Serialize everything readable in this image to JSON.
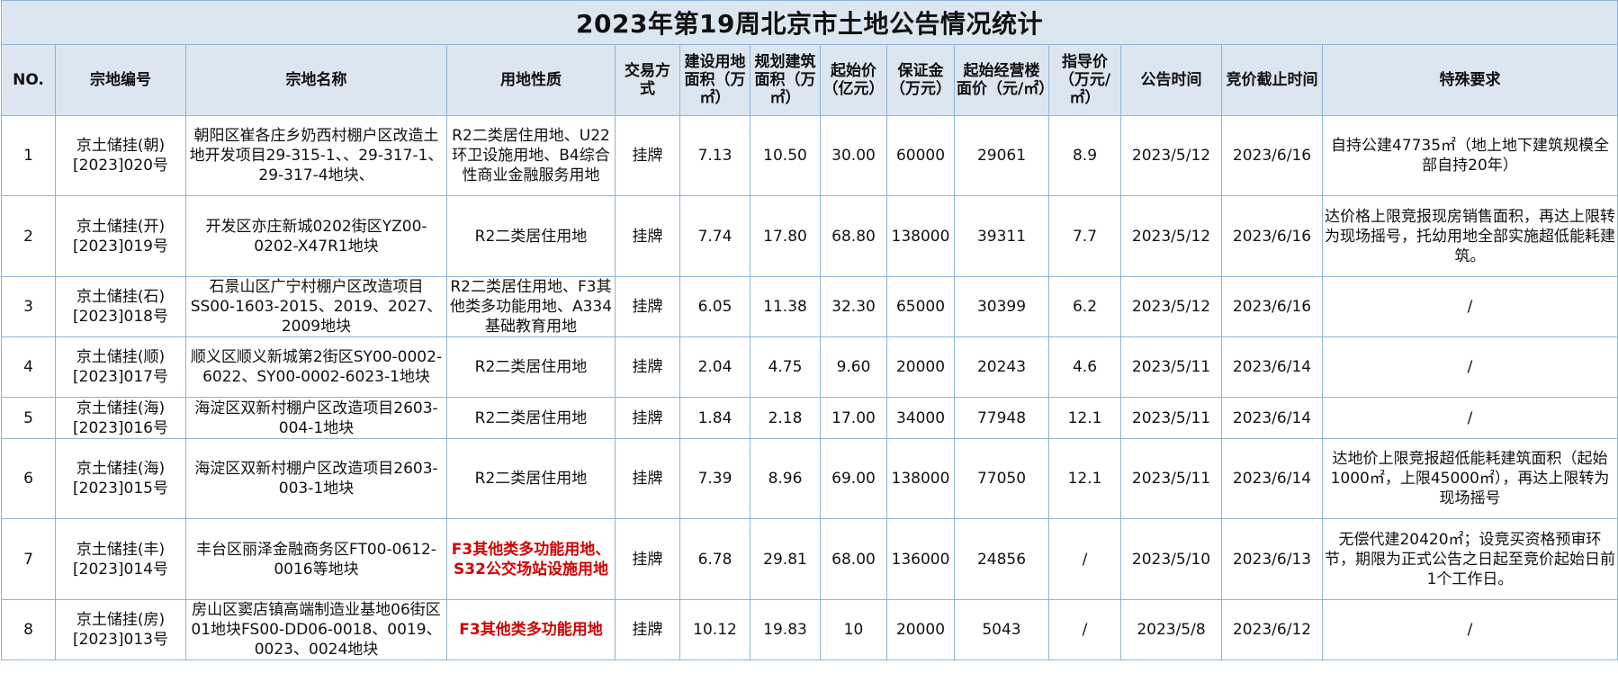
{
  "title": "2023年第19周北京市土地公告情况统计",
  "headers": {
    "no": "NO.",
    "code": "宗地编号",
    "name": "宗地名称",
    "use": "用地性质",
    "method": "交易方式",
    "land_area": "建设用地面积（万㎡）",
    "build_area": "规划建筑面积（万㎡）",
    "start_price": "起始价（亿元）",
    "deposit": "保证金（万元）",
    "floor_price": "起始经营楼面价（元/㎡）",
    "guide_price": "指导价（万元/㎡）",
    "announce": "公告时间",
    "deadline": "竞价截止时间",
    "special": "特殊要求"
  },
  "rows": [
    {
      "no": "1",
      "code": "京土储挂(朝)[2023]020号",
      "name": "朝阳区崔各庄乡奶西村棚户区改造土地开发项目29-315-1、、29-317-1、29-317-4地块、",
      "use": "R2二类居住用地、U22环卫设施用地、B4综合性商业金融服务用地",
      "method": "挂牌",
      "land_area": "7.13",
      "build_area": "10.50",
      "start_price": "30.00",
      "deposit": "60000",
      "floor_price": "29061",
      "guide_price": "8.9",
      "announce": "2023/5/12",
      "deadline": "2023/6/16",
      "special": "自持公建47735㎡（地上地下建筑规模全部自持20年）"
    },
    {
      "no": "2",
      "code": "京土储挂(开)[2023]019号",
      "name": "开发区亦庄新城0202街区YZ00-0202-X47R1地块",
      "use": "R2二类居住用地",
      "method": "挂牌",
      "land_area": "7.74",
      "build_area": "17.80",
      "start_price": "68.80",
      "deposit": "138000",
      "floor_price": "39311",
      "guide_price": "7.7",
      "announce": "2023/5/12",
      "deadline": "2023/6/16",
      "special": "达价格上限竞报现房销售面积，再达上限转为现场摇号，托幼用地全部实施超低能耗建筑。"
    },
    {
      "no": "3",
      "code": "京土储挂(石)[2023]018号",
      "name": "石景山区广宁村棚户区改造项目SS00-1603-2015、2019、2027、2009地块",
      "use": "R2二类居住用地、F3其他类多功能用地、A334基础教育用地",
      "method": "挂牌",
      "land_area": "6.05",
      "build_area": "11.38",
      "start_price": "32.30",
      "deposit": "65000",
      "floor_price": "30399",
      "guide_price": "6.2",
      "announce": "2023/5/12",
      "deadline": "2023/6/16",
      "special": "/"
    },
    {
      "no": "4",
      "code": "京土储挂(顺)[2023]017号",
      "name": "顺义区顺义新城第2街区SY00-0002-6022、SY00-0002-6023-1地块",
      "use": "R2二类居住用地",
      "method": "挂牌",
      "land_area": "2.04",
      "build_area": "4.75",
      "start_price": "9.60",
      "deposit": "20000",
      "floor_price": "20243",
      "guide_price": "4.6",
      "announce": "2023/5/11",
      "deadline": "2023/6/14",
      "special": "/"
    },
    {
      "no": "5",
      "code": "京土储挂(海)[2023]016号",
      "name": "海淀区双新村棚户区改造项目2603-004-1地块",
      "use": "R2二类居住用地",
      "method": "挂牌",
      "land_area": "1.84",
      "build_area": "2.18",
      "start_price": "17.00",
      "deposit": "34000",
      "floor_price": "77948",
      "guide_price": "12.1",
      "announce": "2023/5/11",
      "deadline": "2023/6/14",
      "special": "/"
    },
    {
      "no": "6",
      "code": "京土储挂(海)[2023]015号",
      "name": "海淀区双新村棚户区改造项目2603-003-1地块",
      "use": "R2二类居住用地",
      "method": "挂牌",
      "land_area": "7.39",
      "build_area": "8.96",
      "start_price": "69.00",
      "deposit": "138000",
      "floor_price": "77050",
      "guide_price": "12.1",
      "announce": "2023/5/11",
      "deadline": "2023/6/14",
      "special": "达地价上限竞报超低能耗建筑面积（起始1000㎡，上限45000㎡），再达上限转为现场摇号"
    },
    {
      "no": "7",
      "code": "京土储挂(丰)[2023]014号",
      "name": "丰台区丽泽金融商务区FT00-0612-0016等地块",
      "use": "F3其他类多功能用地、S32公交场站设施用地",
      "use_red": true,
      "method": "挂牌",
      "land_area": "6.78",
      "build_area": "29.81",
      "start_price": "68.00",
      "deposit": "136000",
      "floor_price": "24856",
      "guide_price": "/",
      "announce": "2023/5/10",
      "deadline": "2023/6/13",
      "special": "无偿代建20420㎡；设竞买资格预审环节，期限为正式公告之日起至竞价起始日前1个工作日。"
    },
    {
      "no": "8",
      "code": "京土储挂(房)[2023]013号",
      "name": "房山区窦店镇高端制造业基地06街区01地块FS00-DD06-0018、0019、0023、0024地块",
      "use": "F3其他类多功能用地",
      "use_red": true,
      "method": "挂牌",
      "land_area": "10.12",
      "build_area": "19.83",
      "start_price": "10",
      "deposit": "20000",
      "floor_price": "5043",
      "guide_price": "/",
      "announce": "2023/5/8",
      "deadline": "2023/6/12",
      "special": "/"
    }
  ]
}
